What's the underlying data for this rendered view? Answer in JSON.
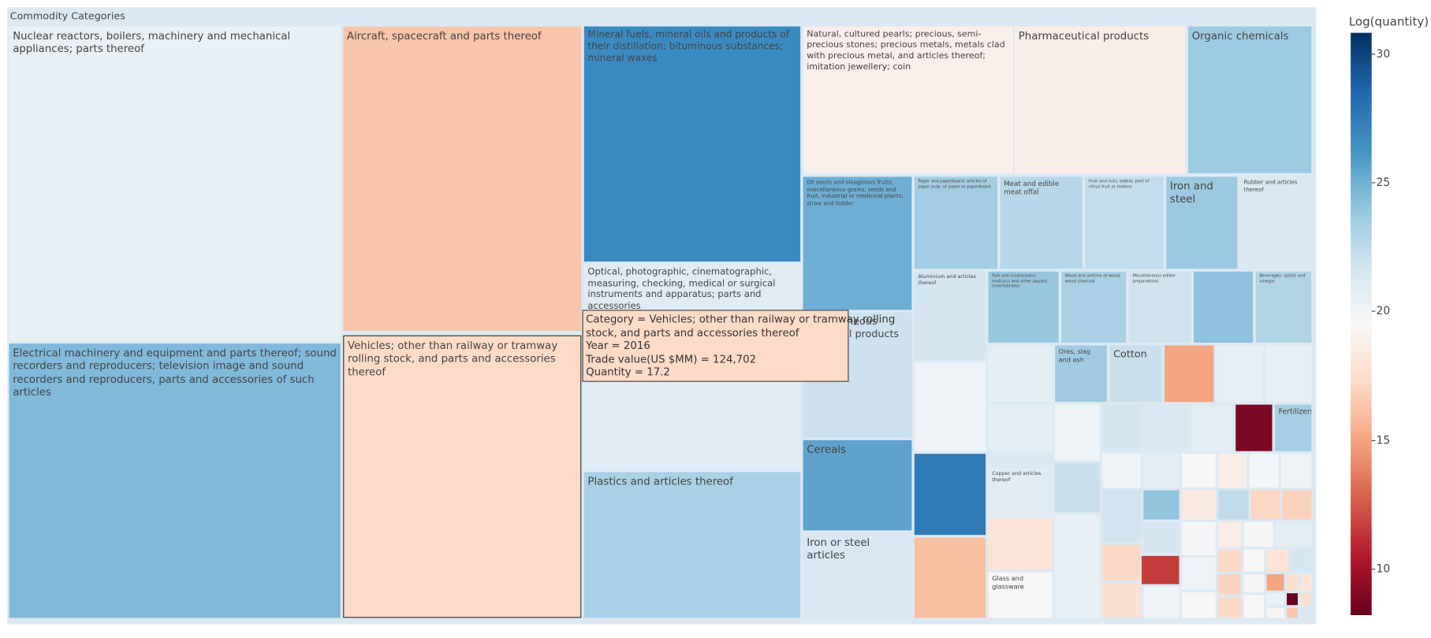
{
  "chart_data": {
    "type": "treemap",
    "title": "Commodity Categories",
    "tiles": [
      {
        "label": "Nuclear reactors, boilers, machinery and mechanical appliances; parts thereof",
        "color": "#e8eff5"
      },
      {
        "label": "Electrical machinery and equipment and parts thereof; sound recorders and reproducers; television image and sound recorders and reproducers, parts and accessories of such articles",
        "color": "#80b9da"
      },
      {
        "label": "Aircraft, spacecraft and parts thereof",
        "color": "#f8c5ab"
      },
      {
        "label": "Vehicles; other than railway or tramway rolling stock, and parts and accessories thereof",
        "color": "#fddbc7"
      },
      {
        "label": "Mineral fuels, mineral oils and products of their distillation; bituminous substances; mineral waxes",
        "color": "#3a8ac2"
      },
      {
        "label": "Optical, photographic, cinematographic, measuring, checking, medical or surgical instruments and apparatus; parts and accessories",
        "color": "#e0ebf3"
      },
      {
        "label": "Plastics and articles thereof",
        "color": "#a9d1e5"
      },
      {
        "label": "Natural, cultured pearls; precious, semi-precious stones; precious metals, metals clad with precious metal, and articles thereof; imitation jewellery; coin",
        "color": "#f8eeea"
      },
      {
        "label": "Pharmaceutical products",
        "color": "#f9ede8"
      },
      {
        "label": "Organic chemicals",
        "color": "#9ccae1"
      },
      {
        "label": "Oil seeds and oleaginous fruits; miscellaneous grains, seeds and fruit, industrial or medicinal plants; straw and fodder",
        "color": "#6faed4"
      },
      {
        "label": "Miscellaneous chemical products n.e.c.",
        "color": "#cde2ee"
      },
      {
        "label": "Cereals",
        "color": "#5fa2cd"
      },
      {
        "label": "Iron or steel articles",
        "color": "#d8e7f1"
      },
      {
        "label": "Paper and paperboard; articles of paper pulp, of paper or paperboard",
        "color": "#a3cde3"
      },
      {
        "label": "Meat and edible meat offal",
        "color": "#b7d7e8"
      },
      {
        "label": "Fruit and nuts, edible; peel of citrus fruit or melons",
        "color": "#c4dded"
      },
      {
        "label": "Iron and steel",
        "color": "#9cc9e1"
      },
      {
        "label": "Rubber and articles thereof",
        "color": "#dae8f1"
      },
      {
        "label": "Aluminium and articles thereof",
        "color": "#d4e5ef"
      },
      {
        "label": "Fish and crustaceans, molluscs and other aquatic invertebrates",
        "color": "#98c7e0"
      },
      {
        "label": "Wood and articles of wood; wood charcoal",
        "color": "#a9d0e4"
      },
      {
        "label": "Miscellaneous edible preparations",
        "color": "#d0e3ef"
      },
      {
        "color": "#8fc2de"
      },
      {
        "label": "Beverages, spirits and vinegar",
        "color": "#b0d4e6"
      },
      {
        "color": "#edf2f6"
      },
      {
        "color": "#e3edf4"
      },
      {
        "label": "Ores, slag and ash",
        "color": "#a1cbe2"
      },
      {
        "label": "Cotton",
        "color": "#c9dfec"
      },
      {
        "color": "#f4a582"
      },
      {
        "color": "#e6eef4"
      },
      {
        "color": "#e6eef4"
      },
      {
        "color": "#e3edf4"
      },
      {
        "color": "#7a0822"
      },
      {
        "label": "Fertilizers",
        "color": "#a7cfe3"
      },
      {
        "color": "#2f79b5"
      },
      {
        "color": "#f8bfa0"
      },
      {
        "label": "Copper and articles thereof",
        "color": "#e0ebf3"
      },
      {
        "color": "#fbe3d6"
      },
      {
        "label": "Glass and glassware",
        "color": "#f6f6f6"
      },
      {
        "color": "#c43c3c"
      },
      {
        "color": "#eef3f7"
      },
      {
        "color": "#d6e6f0"
      },
      {
        "color": "#dae8f1"
      },
      {
        "color": "#e2ecf3"
      },
      {
        "color": "#eef3f7"
      },
      {
        "color": "#e3edf4"
      },
      {
        "color": "#f6f6f6"
      },
      {
        "color": "#f9ece6"
      },
      {
        "color": "#f3f5f7"
      },
      {
        "color": "#edf2f6"
      },
      {
        "color": "#c8deec"
      },
      {
        "color": "#e8eff5"
      },
      {
        "color": "#d2e4ef"
      },
      {
        "color": "#92c4de"
      },
      {
        "color": "#fae9e1"
      },
      {
        "color": "#c1dbea"
      },
      {
        "color": "#fcd7c3"
      },
      {
        "color": "#fbd2bb"
      },
      {
        "color": "#d4e5ef"
      },
      {
        "color": "#fbd9c6"
      },
      {
        "color": "#fce0d2"
      },
      {
        "color": "#eef3f7"
      },
      {
        "color": "#f3f5f7"
      },
      {
        "color": "#edf2f6"
      },
      {
        "color": "#f6f6f6"
      },
      {
        "color": "#f9ece6"
      },
      {
        "color": "#f3f5f7"
      },
      {
        "color": "#e2ecf3"
      },
      {
        "color": "#fbdac8"
      },
      {
        "color": "#f6f6f6"
      },
      {
        "color": "#fce3d5"
      },
      {
        "color": "#d6e6f0"
      },
      {
        "color": "#fbd4bf"
      },
      {
        "color": "#f4f4f4"
      },
      {
        "color": "#f4a582"
      },
      {
        "color": "#fbdfd0"
      },
      {
        "color": "#fce5d8"
      },
      {
        "color": "#fbd9c6"
      },
      {
        "color": "#f6f6f6"
      },
      {
        "color": "#e8eff5"
      },
      {
        "color": "#67001f"
      },
      {
        "color": "#f9e0d2"
      },
      {
        "color": "#f4f4f4"
      },
      {
        "color": "#f9c6ad"
      },
      {
        "color": "#dbe8f1"
      }
    ],
    "hovered_tile": 3,
    "tooltip": {
      "lines": [
        "Category = Vehicles; other than railway or tramway rolling",
        "stock, and parts and accessories thereof",
        "Year = 2016",
        "Trade value(US $MM) = 124,702",
        "Quantity = 17.2"
      ],
      "color": "#fddbc7"
    },
    "colorbar": {
      "title": "Log(quantity)",
      "range": [
        8.2,
        30.8
      ],
      "ticks": [
        10,
        15,
        20,
        25,
        30
      ],
      "colorscale": [
        "#67001f",
        "#b2182b",
        "#d6604d",
        "#f4a582",
        "#fddbc7",
        "#f7f7f7",
        "#d1e5f0",
        "#92c5de",
        "#4393c3",
        "#2166ac",
        "#053061"
      ]
    }
  }
}
